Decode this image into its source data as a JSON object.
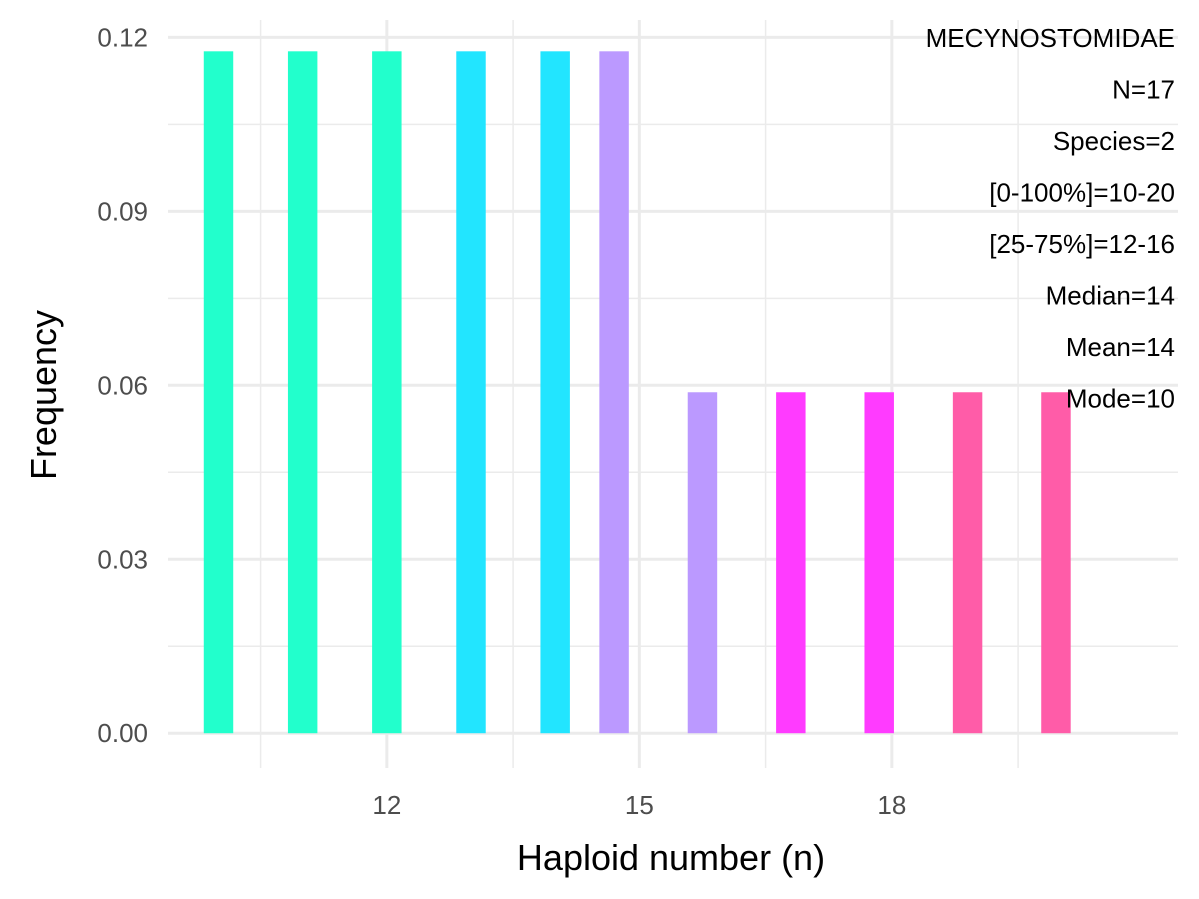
{
  "chart_data": {
    "type": "bar",
    "xlabel": "Haploid number (n)",
    "ylabel": "Frequency",
    "xlim": [
      9.4,
      21.4
    ],
    "ylim": [
      -0.006,
      0.123
    ],
    "x_ticks": [
      12,
      15,
      18
    ],
    "x_tick_labels": [
      "12",
      "15",
      "18"
    ],
    "x_minor_ticks": [
      10.5,
      13.5,
      16.5,
      19.5
    ],
    "y_ticks": [
      0.0,
      0.03,
      0.06,
      0.09,
      0.12
    ],
    "y_tick_labels": [
      "0.00",
      "0.03",
      "0.06",
      "0.09",
      "0.12"
    ],
    "y_minor_ticks": [
      0.015,
      0.045,
      0.075,
      0.105
    ],
    "bar_width": 0.35,
    "bars": [
      {
        "x": 10,
        "value": 0.1176,
        "color": "#22FFCC"
      },
      {
        "x": 11,
        "value": 0.1176,
        "color": "#22FFCC"
      },
      {
        "x": 12,
        "value": 0.1176,
        "color": "#22FFCC"
      },
      {
        "x": 13,
        "value": 0.1176,
        "color": "#22E5FF"
      },
      {
        "x": 14,
        "value": 0.1176,
        "color": "#22E5FF"
      },
      {
        "x": 14.7,
        "value": 0.1176,
        "color": "#BB99FF"
      },
      {
        "x": 15.75,
        "value": 0.0588,
        "color": "#BB99FF"
      },
      {
        "x": 16.8,
        "value": 0.0588,
        "color": "#FF3BFF"
      },
      {
        "x": 17.85,
        "value": 0.0588,
        "color": "#FF3BFF"
      },
      {
        "x": 18.9,
        "value": 0.0588,
        "color": "#FF5CA8"
      },
      {
        "x": 19.95,
        "value": 0.0588,
        "color": "#FF5CA8"
      }
    ],
    "annotations": [
      "MECYNOSTOMIDAE",
      "N=17",
      "Species=2",
      "[0-100%]=10-20",
      "[25-75%]=12-16",
      "Median=14",
      "Mean=14",
      "Mode=10"
    ],
    "annotation_position": "top-right",
    "grid": true,
    "grid_color": "#EBEBEB"
  }
}
